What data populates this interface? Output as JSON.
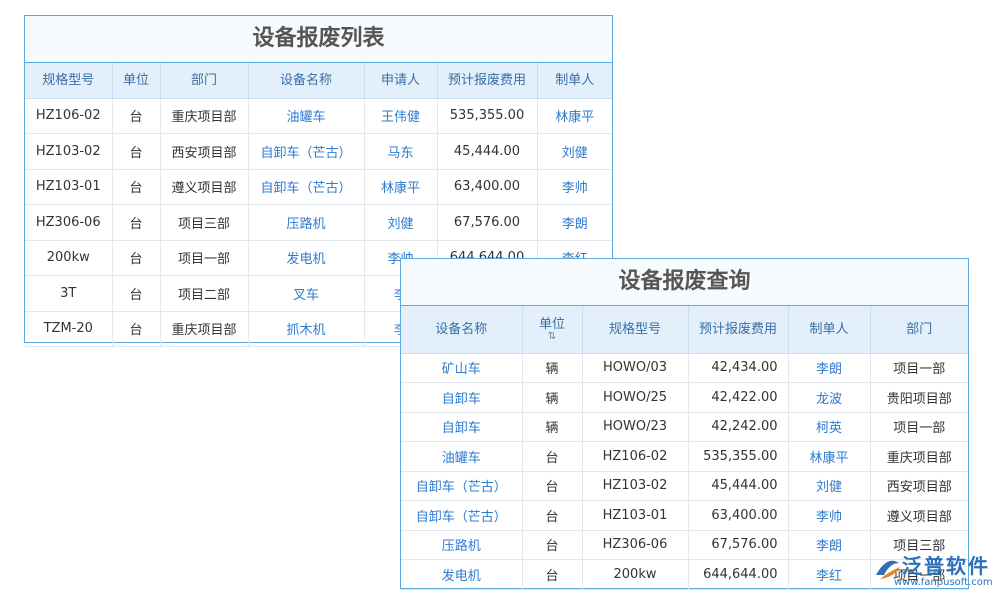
{
  "back_table": {
    "title": "设备报废列表",
    "headers": [
      "规格型号",
      "单位",
      "部门",
      "设备名称",
      "申请人",
      "预计报废费用",
      "制单人"
    ],
    "rows": [
      [
        "HZ106-02",
        "台",
        "重庆项目部",
        "油罐车",
        "王伟健",
        "535,355.00",
        "林康平"
      ],
      [
        "HZ103-02",
        "台",
        "西安项目部",
        "自卸车（芒古）",
        "马东",
        "45,444.00",
        "刘健"
      ],
      [
        "HZ103-01",
        "台",
        "遵义项目部",
        "自卸车（芒古）",
        "林康平",
        "63,400.00",
        "李帅"
      ],
      [
        "HZ306-06",
        "台",
        "项目三部",
        "压路机",
        "刘健",
        "67,576.00",
        "李朗"
      ],
      [
        "200kw",
        "台",
        "项目一部",
        "发电机",
        "李帅",
        "644,644.00",
        "李红"
      ],
      [
        "3T",
        "台",
        "项目二部",
        "叉车",
        "李",
        null,
        null
      ],
      [
        "TZM-20",
        "台",
        "重庆项目部",
        "抓木机",
        "李",
        null,
        null
      ]
    ]
  },
  "front_table": {
    "title": "设备报废查询",
    "headers": [
      "设备名称",
      "单位",
      "规格型号",
      "预计报废费用",
      "制单人",
      "部门"
    ],
    "rows": [
      [
        "矿山车",
        "辆",
        "HOWO/03",
        "42,434.00",
        "李朗",
        "项目一部"
      ],
      [
        "自卸车",
        "辆",
        "HOWO/25",
        "42,422.00",
        "龙波",
        "贵阳项目部"
      ],
      [
        "自卸车",
        "辆",
        "HOWO/23",
        "42,242.00",
        "柯英",
        "项目一部"
      ],
      [
        "油罐车",
        "台",
        "HZ106-02",
        "535,355.00",
        "林康平",
        "重庆项目部"
      ],
      [
        "自卸车（芒古）",
        "台",
        "HZ103-02",
        "45,444.00",
        "刘健",
        "西安项目部"
      ],
      [
        "自卸车（芒古）",
        "台",
        "HZ103-01",
        "63,400.00",
        "李帅",
        "遵义项目部"
      ],
      [
        "压路机",
        "台",
        "HZ306-06",
        "67,576.00",
        "李朗",
        "项目三部"
      ],
      [
        "发电机",
        "台",
        "200kw",
        "644,644.00",
        "李红",
        "项目一部"
      ]
    ]
  },
  "logo": {
    "name": "泛普软件",
    "url": "www.fanpusoft.com"
  }
}
